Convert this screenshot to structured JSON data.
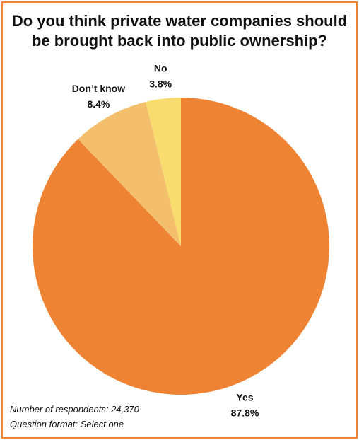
{
  "chart_data": {
    "type": "pie",
    "title": "Do you think private water companies should be brought back into public ownership?",
    "categories": [
      "Yes",
      "Don’t know",
      "No"
    ],
    "values": [
      87.8,
      8.4,
      3.8
    ],
    "value_labels": [
      "87.8%",
      "8.4%",
      "3.8%"
    ],
    "colors": [
      "#ee8433",
      "#f3bf6c",
      "#f8dd6e"
    ],
    "notes": [
      "Number of respondents: 24,370",
      "Question format: Select one"
    ]
  }
}
